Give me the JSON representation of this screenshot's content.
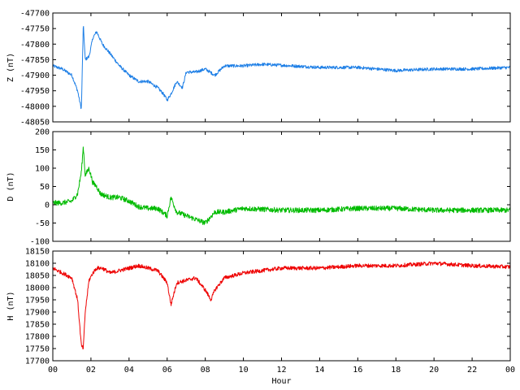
{
  "chart_data": {
    "type": "line",
    "xlabel": "Hour",
    "x_ticks": [
      "00",
      "02",
      "04",
      "06",
      "08",
      "10",
      "12",
      "14",
      "16",
      "18",
      "20",
      "22",
      "00"
    ],
    "xlim": [
      0,
      24
    ],
    "panels": [
      {
        "id": "Z",
        "ylabel": "Z (nT)",
        "color": "#1e7fe6",
        "ylim": [
          -48050,
          -47700
        ],
        "y_ticks": [
          -47700,
          -47750,
          -47800,
          -47850,
          -47900,
          -47950,
          -48000,
          -48050
        ],
        "series": {
          "x": [
            0,
            0.5,
            1.0,
            1.3,
            1.5,
            1.6,
            1.7,
            1.9,
            2.1,
            2.3,
            2.6,
            3.0,
            3.5,
            4.0,
            4.5,
            5.0,
            5.5,
            5.8,
            6.0,
            6.2,
            6.5,
            6.8,
            7.0,
            7.5,
            8.0,
            8.5,
            9.0,
            10,
            11,
            12,
            14,
            16,
            18,
            20,
            22,
            24
          ],
          "y": [
            -47870,
            -47880,
            -47900,
            -47950,
            -48010,
            -47735,
            -47850,
            -47840,
            -47780,
            -47760,
            -47800,
            -47830,
            -47870,
            -47900,
            -47920,
            -47920,
            -47940,
            -47960,
            -47980,
            -47960,
            -47920,
            -47940,
            -47890,
            -47890,
            -47880,
            -47900,
            -47870,
            -47870,
            -47865,
            -47868,
            -47875,
            -47875,
            -47885,
            -47880,
            -47880,
            -47875
          ],
          "noise": 5
        }
      },
      {
        "id": "D",
        "ylabel": "D (nT)",
        "color": "#00bb00",
        "ylim": [
          -100,
          200
        ],
        "y_ticks": [
          200,
          150,
          100,
          50,
          0,
          -50,
          -100
        ],
        "series": {
          "x": [
            0,
            0.5,
            1.0,
            1.3,
            1.5,
            1.6,
            1.7,
            1.9,
            2.1,
            2.3,
            2.5,
            3.0,
            3.5,
            4.0,
            4.5,
            5.0,
            5.5,
            6.0,
            6.2,
            6.5,
            7.0,
            7.5,
            8.0,
            8.5,
            9.0,
            10,
            12,
            14,
            16,
            18,
            20,
            22,
            24
          ],
          "y": [
            5,
            5,
            10,
            30,
            90,
            160,
            80,
            100,
            60,
            50,
            30,
            20,
            20,
            10,
            -5,
            -10,
            -10,
            -30,
            20,
            -20,
            -30,
            -40,
            -50,
            -20,
            -20,
            -10,
            -15,
            -15,
            -10,
            -10,
            -15,
            -15,
            -15
          ],
          "noise": 7
        }
      },
      {
        "id": "H",
        "ylabel": "H (nT)",
        "color": "#ee0000",
        "ylim": [
          17700,
          18150
        ],
        "y_ticks": [
          18150,
          18100,
          18050,
          18000,
          17950,
          17900,
          17850,
          17800,
          17750,
          17700
        ],
        "series": {
          "x": [
            0,
            0.5,
            1.0,
            1.3,
            1.5,
            1.6,
            1.7,
            1.9,
            2.1,
            2.3,
            2.6,
            3.0,
            3.5,
            4.0,
            4.5,
            5.0,
            5.5,
            6.0,
            6.2,
            6.5,
            7.0,
            7.5,
            8.0,
            8.3,
            8.5,
            9.0,
            10,
            12,
            14,
            16,
            18,
            20,
            22,
            24
          ],
          "y": [
            18080,
            18060,
            18040,
            17950,
            17760,
            17750,
            17900,
            18030,
            18060,
            18080,
            18080,
            18060,
            18070,
            18080,
            18090,
            18080,
            18070,
            18020,
            17930,
            18020,
            18030,
            18040,
            17990,
            17950,
            17990,
            18040,
            18060,
            18080,
            18080,
            18090,
            18090,
            18100,
            18090,
            18085
          ],
          "noise": 8
        }
      }
    ]
  }
}
